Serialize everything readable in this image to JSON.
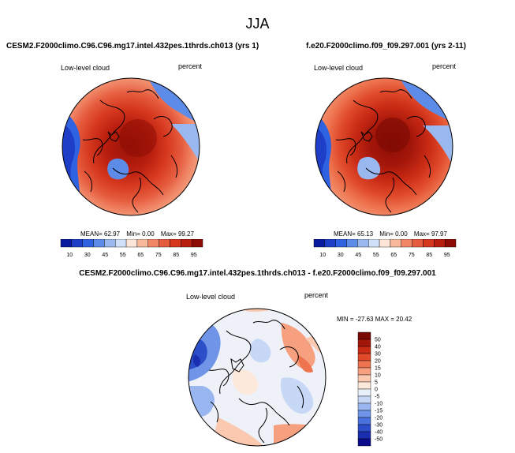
{
  "figure": {
    "title": "JJA",
    "diff_title": "CESM2.F2000climo.C96.C96.mg17.intel.432pes.1thrds.ch013 - f.e20.F2000climo.f09_f09.297.001"
  },
  "colors": {
    "seq_scale": [
      "#0a1a9e",
      "#1e3ec8",
      "#2f62e0",
      "#5d8ce8",
      "#9ab8f0",
      "#cfe0f8",
      "#fde6d8",
      "#f8b89a",
      "#f08868",
      "#e65c3e",
      "#d6381e",
      "#b81e0e",
      "#8c0c04"
    ],
    "div_scale": [
      "#0a0c8c",
      "#1a2eb0",
      "#2c4ec8",
      "#4a72dc",
      "#6f94e8",
      "#9ab6f0",
      "#c6d8f6",
      "#eaf0fa",
      "#fde8dc",
      "#fbc8b0",
      "#f6a080",
      "#ee7450",
      "#e04a2a",
      "#c82a14",
      "#a4160a",
      "#7a0a04"
    ]
  },
  "chart_data": [
    {
      "type": "heatmap",
      "projection": "polar stereographic (Arctic)",
      "case": "CESM2.F2000climo.C96.C96.mg17.intel.432pes.1thrds.ch013 (yrs 1)",
      "field": "Low-level cloud",
      "units": "percent",
      "stats": {
        "mean": "62.97",
        "min": "0.00",
        "max": "99.27"
      },
      "stats_labels": {
        "mean": "MEAN=",
        "min": "Min=",
        "max": "Max="
      },
      "colorbar_ticks": [
        "10",
        "30",
        "45",
        "55",
        "65",
        "75",
        "85",
        "95"
      ],
      "colorbar_range": [
        0,
        100
      ]
    },
    {
      "type": "heatmap",
      "projection": "polar stereographic (Arctic)",
      "case": "f.e20.F2000climo.f09_f09.297.001 (yrs 2-11)",
      "field": "Low-level cloud",
      "units": "percent",
      "stats": {
        "mean": "65.13",
        "min": "0.00",
        "max": "97.97"
      },
      "stats_labels": {
        "mean": "MEAN=",
        "min": "Min=",
        "max": "Max="
      },
      "colorbar_ticks": [
        "10",
        "30",
        "45",
        "55",
        "65",
        "75",
        "85",
        "95"
      ],
      "colorbar_range": [
        0,
        100
      ]
    },
    {
      "type": "heatmap",
      "projection": "polar stereographic (Arctic)",
      "case": "difference",
      "field": "Low-level cloud",
      "units": "percent",
      "stats_text": "MIN = -27.63 MAX = 20.42",
      "colorbar_ticks": [
        "50",
        "40",
        "30",
        "20",
        "15",
        "10",
        "5",
        "0",
        "-5",
        "-10",
        "-15",
        "-20",
        "-30",
        "-40",
        "-50"
      ],
      "colorbar_range": [
        -60,
        60
      ]
    }
  ]
}
